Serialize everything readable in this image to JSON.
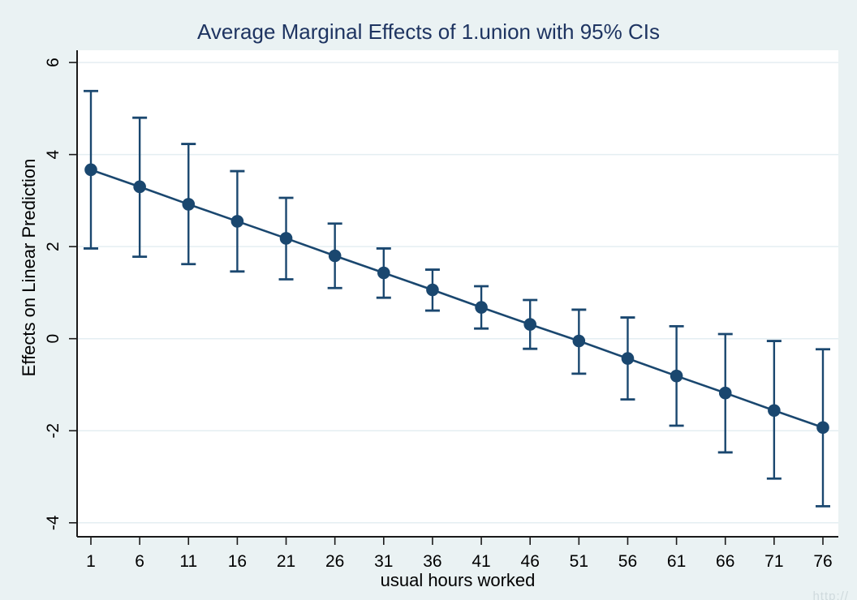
{
  "chart_data": {
    "type": "line",
    "subtype": "errorbar-marginsplot",
    "title": "Average Marginal Effects of 1.union with 95% CIs",
    "xlabel": "usual hours worked",
    "ylabel": "Effects on Linear Prediction",
    "ci_level": "95%",
    "x": [
      1,
      6,
      11,
      16,
      21,
      26,
      31,
      36,
      41,
      46,
      51,
      56,
      61,
      66,
      71,
      76
    ],
    "series": [
      {
        "name": "Average marginal effect of 1.union",
        "values": [
          3.67,
          3.3,
          2.92,
          2.55,
          2.18,
          1.8,
          1.43,
          1.06,
          0.68,
          0.31,
          -0.05,
          -0.43,
          -0.81,
          -1.18,
          -1.56,
          -1.93
        ],
        "ci_upper": [
          5.38,
          4.8,
          4.23,
          3.64,
          3.06,
          2.5,
          1.96,
          1.5,
          1.14,
          0.84,
          0.63,
          0.46,
          0.27,
          0.1,
          -0.05,
          -0.23
        ],
        "ci_lower": [
          1.96,
          1.78,
          1.62,
          1.46,
          1.29,
          1.1,
          0.89,
          0.61,
          0.22,
          -0.22,
          -0.76,
          -1.32,
          -1.89,
          -2.47,
          -3.04,
          -3.64
        ]
      }
    ],
    "xticks": [
      1,
      6,
      11,
      16,
      21,
      26,
      31,
      36,
      41,
      46,
      51,
      56,
      61,
      66,
      71,
      76
    ],
    "yticks": [
      6,
      4,
      2,
      0,
      -2,
      -4
    ],
    "ylim": [
      -4.3,
      6.27
    ],
    "xlim": [
      -0.4,
      77.6
    ],
    "grid": true,
    "legend": "none"
  },
  "colors": {
    "background": "#eaf2f3",
    "plot_background": "#ffffff",
    "gridline": "#e4eef2",
    "axis": "#1a1a1a",
    "series_navy": "#1a476f",
    "title_text": "#1e3461",
    "tick_text": "#000000"
  },
  "watermark": "http://"
}
